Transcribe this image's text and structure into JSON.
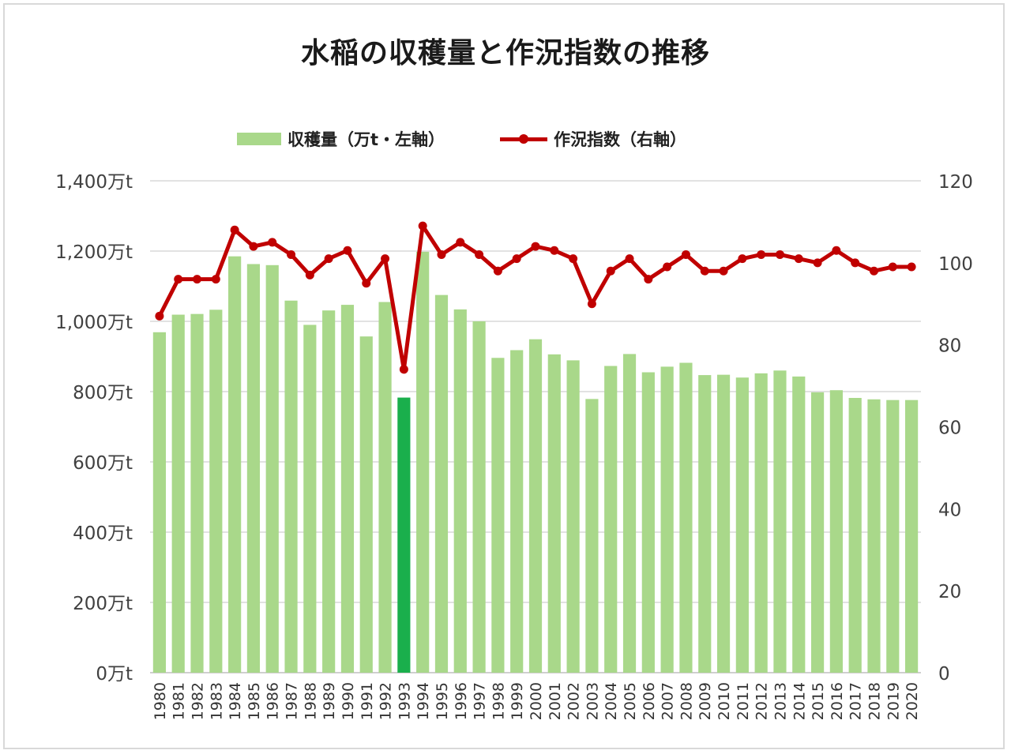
{
  "chart_data": {
    "type": "bar+line",
    "title": "水稲の収穫量と作況指数の推移",
    "categories": [
      "1980",
      "1981",
      "1982",
      "1983",
      "1984",
      "1985",
      "1986",
      "1987",
      "1988",
      "1989",
      "1990",
      "1991",
      "1992",
      "1993",
      "1994",
      "1995",
      "1996",
      "1997",
      "1998",
      "1999",
      "2000",
      "2001",
      "2002",
      "2003",
      "2004",
      "2005",
      "2006",
      "2007",
      "2008",
      "2009",
      "2010",
      "2011",
      "2012",
      "2013",
      "2014",
      "2015",
      "2016",
      "2017",
      "2018",
      "2019",
      "2020"
    ],
    "series": [
      {
        "name": "収穫量（万t・左軸）",
        "type": "bar",
        "axis": "left",
        "color": "#a9d88a",
        "highlight_color": "#1aaf4c",
        "highlight_category": "1993",
        "values": [
          969,
          1019,
          1021,
          1033,
          1185,
          1163,
          1160,
          1059,
          990,
          1031,
          1047,
          957,
          1055,
          783,
          1198,
          1075,
          1034,
          1000,
          896,
          918,
          949,
          906,
          889,
          779,
          873,
          907,
          855,
          871,
          882,
          847,
          848,
          840,
          852,
          860,
          843,
          798,
          804,
          782,
          778,
          776,
          776
        ]
      },
      {
        "name": "作況指数（右軸）",
        "type": "line",
        "axis": "right",
        "color": "#c00000",
        "values": [
          87,
          96,
          96,
          96,
          108,
          104,
          105,
          102,
          97,
          101,
          103,
          95,
          101,
          74,
          109,
          102,
          105,
          102,
          98,
          101,
          104,
          103,
          101,
          90,
          98,
          101,
          96,
          99,
          102,
          98,
          98,
          101,
          102,
          102,
          101,
          100,
          103,
          100,
          98,
          99,
          99
        ]
      }
    ],
    "y_left": {
      "min": 0,
      "max": 1400,
      "step": 200,
      "suffix": "万t",
      "tick_labels": [
        "0万t",
        "200万t",
        "400万t",
        "600万t",
        "800万t",
        "1,000万t",
        "1,200万t",
        "1,400万t"
      ]
    },
    "y_right": {
      "min": 0,
      "max": 120,
      "step": 20,
      "tick_labels": [
        "0",
        "20",
        "40",
        "60",
        "80",
        "100",
        "120"
      ]
    },
    "grid": true,
    "legend": "top-center"
  }
}
